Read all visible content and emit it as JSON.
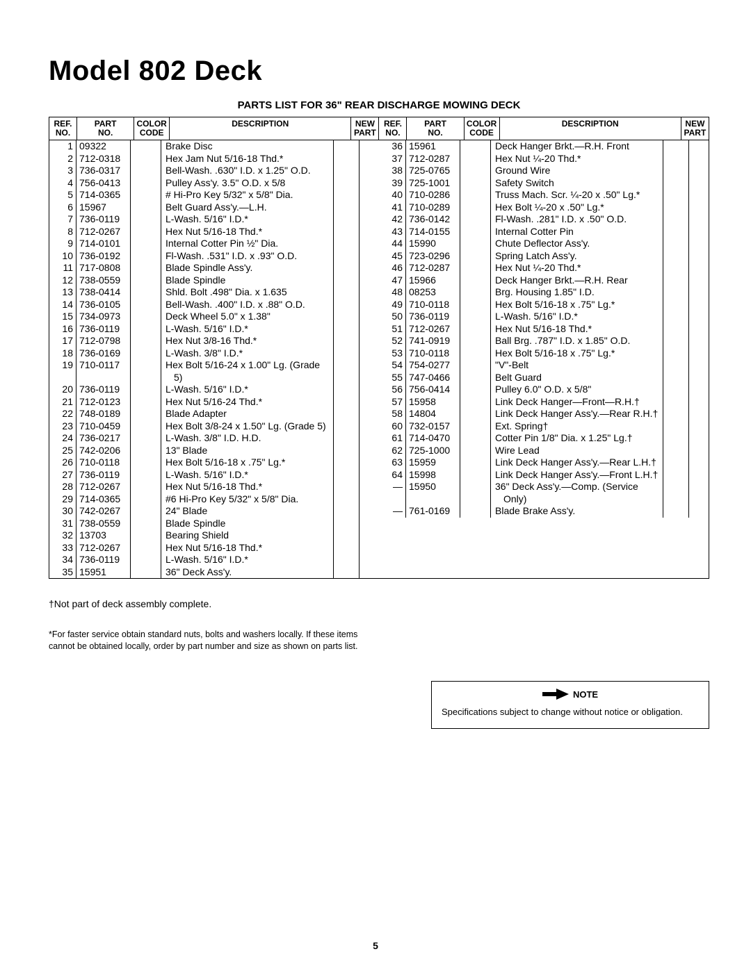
{
  "title": "Model 802 Deck",
  "subtitle": "PARTS LIST FOR 36\" REAR DISCHARGE MOWING DECK",
  "headers": {
    "ref": "REF.\nNO.",
    "part": "PART\nNO.",
    "color": "COLOR\nCODE",
    "desc": "DESCRIPTION",
    "new": "NEW\nPART"
  },
  "left": [
    {
      "ref": "1",
      "part": "09322",
      "desc": "Brake Disc"
    },
    {
      "ref": "2",
      "part": "712-0318",
      "desc": "Hex Jam Nut 5/16-18 Thd.*"
    },
    {
      "ref": "3",
      "part": "736-0317",
      "desc": "Bell-Wash. .630\" I.D. x 1.25\" O.D."
    },
    {
      "ref": "4",
      "part": "756-0413",
      "desc": "Pulley Ass'y. 3.5\" O.D. x 5/8"
    },
    {
      "ref": "5",
      "part": "714-0365",
      "desc": "# Hi-Pro Key 5/32\" x 5/8\" Dia."
    },
    {
      "ref": "6",
      "part": "15967",
      "desc": "Belt Guard Ass'y.—L.H."
    },
    {
      "ref": "7",
      "part": "736-0119",
      "desc": "L-Wash. 5/16\" I.D.*"
    },
    {
      "ref": "8",
      "part": "712-0267",
      "desc": "Hex Nut 5/16-18 Thd.*"
    },
    {
      "ref": "9",
      "part": "714-0101",
      "desc": "Internal Cotter Pin ½\" Dia."
    },
    {
      "ref": "10",
      "part": "736-0192",
      "desc": "Fl-Wash. .531\" I.D. x .93\" O.D."
    },
    {
      "ref": "11",
      "part": "717-0808",
      "desc": "Blade Spindle Ass'y."
    },
    {
      "ref": "12",
      "part": "738-0559",
      "desc": "Blade Spindle"
    },
    {
      "ref": "13",
      "part": "738-0414",
      "desc": "Shld. Bolt .498\" Dia. x 1.635"
    },
    {
      "ref": "14",
      "part": "736-0105",
      "desc": "Bell-Wash. .400\" I.D. x .88\" O.D."
    },
    {
      "ref": "15",
      "part": "734-0973",
      "desc": "Deck Wheel 5.0\" x 1.38\""
    },
    {
      "ref": "16",
      "part": "736-0119",
      "desc": "L-Wash. 5/16\" I.D.*"
    },
    {
      "ref": "17",
      "part": "712-0798",
      "desc": "Hex Nut 3/8-16 Thd.*"
    },
    {
      "ref": "18",
      "part": "736-0169",
      "desc": "L-Wash. 3/8\" I.D.*"
    },
    {
      "ref": "19",
      "part": "710-0117",
      "desc": "Hex Bolt 5/16-24 x 1.00\" Lg. (Grade 5)"
    },
    {
      "ref": "20",
      "part": "736-0119",
      "desc": "L-Wash. 5/16\" I.D.*"
    },
    {
      "ref": "21",
      "part": "712-0123",
      "desc": "Hex Nut 5/16-24 Thd.*"
    },
    {
      "ref": "22",
      "part": "748-0189",
      "desc": "Blade Adapter"
    },
    {
      "ref": "23",
      "part": "710-0459",
      "desc": "Hex Bolt 3/8-24 x 1.50\" Lg. (Grade 5)"
    },
    {
      "ref": "24",
      "part": "736-0217",
      "desc": "L-Wash. 3/8\" I.D. H.D."
    },
    {
      "ref": "25",
      "part": "742-0206",
      "desc": "13\" Blade"
    },
    {
      "ref": "26",
      "part": "710-0118",
      "desc": "Hex Bolt 5/16-18 x .75\" Lg.*"
    },
    {
      "ref": "27",
      "part": "736-0119",
      "desc": "L-Wash. 5/16\" I.D.*"
    },
    {
      "ref": "28",
      "part": "712-0267",
      "desc": "Hex Nut 5/16-18 Thd.*"
    },
    {
      "ref": "29",
      "part": "714-0365",
      "desc": "#6 Hi-Pro Key 5/32\" x 5/8\" Dia."
    },
    {
      "ref": "30",
      "part": "742-0267",
      "desc": "24\" Blade"
    },
    {
      "ref": "31",
      "part": "738-0559",
      "desc": "Blade Spindle"
    },
    {
      "ref": "32",
      "part": "13703",
      "desc": "Bearing Shield"
    },
    {
      "ref": "33",
      "part": "712-0267",
      "desc": "Hex Nut 5/16-18 Thd.*"
    },
    {
      "ref": "34",
      "part": "736-0119",
      "desc": "L-Wash. 5/16\" I.D.*"
    },
    {
      "ref": "35",
      "part": "15951",
      "desc": "36\" Deck Ass'y."
    }
  ],
  "right": [
    {
      "ref": "36",
      "part": "15961",
      "desc": "Deck Hanger Brkt.—R.H. Front"
    },
    {
      "ref": "37",
      "part": "712-0287",
      "desc": "Hex Nut ¼-20 Thd.*"
    },
    {
      "ref": "38",
      "part": "725-0765",
      "desc": "Ground Wire"
    },
    {
      "ref": "39",
      "part": "725-1001",
      "desc": "Safety Switch"
    },
    {
      "ref": "40",
      "part": "710-0286",
      "desc": "Truss Mach. Scr. ¼-20 x .50\" Lg.*"
    },
    {
      "ref": "41",
      "part": "710-0289",
      "desc": "Hex Bolt ¼-20 x .50\" Lg.*"
    },
    {
      "ref": "42",
      "part": "736-0142",
      "desc": "Fl-Wash. .281\" I.D. x .50\" O.D."
    },
    {
      "ref": "43",
      "part": "714-0155",
      "desc": "Internal Cotter Pin"
    },
    {
      "ref": "44",
      "part": "15990",
      "desc": "Chute Deflector Ass'y."
    },
    {
      "ref": "45",
      "part": "723-0296",
      "desc": "Spring Latch Ass'y."
    },
    {
      "ref": "46",
      "part": "712-0287",
      "desc": "Hex Nut ¼-20 Thd.*"
    },
    {
      "ref": "47",
      "part": "15966",
      "desc": "Deck Hanger Brkt.—R.H. Rear"
    },
    {
      "ref": "48",
      "part": "08253",
      "desc": "Brg. Housing 1.85\" I.D."
    },
    {
      "ref": "49",
      "part": "710-0118",
      "desc": "Hex Bolt 5/16-18 x .75\" Lg.*"
    },
    {
      "ref": "50",
      "part": "736-0119",
      "desc": "L-Wash. 5/16\" I.D.*"
    },
    {
      "ref": "51",
      "part": "712-0267",
      "desc": "Hex Nut 5/16-18 Thd.*"
    },
    {
      "ref": "52",
      "part": "741-0919",
      "desc": "Ball Brg. .787\" I.D. x 1.85\" O.D."
    },
    {
      "ref": "53",
      "part": "710-0118",
      "desc": "Hex Bolt 5/16-18 x .75\" Lg.*"
    },
    {
      "ref": "54",
      "part": "754-0277",
      "desc": "\"V\"-Belt"
    },
    {
      "ref": "55",
      "part": "747-0466",
      "desc": "Belt Guard"
    },
    {
      "ref": "56",
      "part": "756-0414",
      "desc": "Pulley 6.0\" O.D. x 5/8\""
    },
    {
      "ref": "57",
      "part": "15958",
      "desc": "Link Deck Hanger—Front—R.H.†"
    },
    {
      "ref": "58",
      "part": "14804",
      "desc": "Link Deck Hanger Ass'y.—Rear R.H.†"
    },
    {
      "ref": "60",
      "part": "732-0157",
      "desc": "Ext. Spring†"
    },
    {
      "ref": "61",
      "part": "714-0470",
      "desc": "Cotter Pin 1/8\" Dia. x 1.25\" Lg.†"
    },
    {
      "ref": "62",
      "part": "725-1000",
      "desc": "Wire Lead"
    },
    {
      "ref": "63",
      "part": "15959",
      "desc": "Link Deck Hanger Ass'y.—Rear L.H.†"
    },
    {
      "ref": "64",
      "part": "15998",
      "desc": "Link Deck Hanger Ass'y.—Front L.H.†"
    },
    {
      "ref": "—",
      "part": "15950",
      "desc": "36\" Deck Ass'y.—Comp. (Service Only)"
    },
    {
      "ref": "—",
      "part": "761-0169",
      "desc": "Blade Brake Ass'y."
    }
  ],
  "footnote_dagger": "†Not part of deck assembly complete.",
  "footnote_star": "*For faster service obtain standard nuts, bolts and washers locally. If these items cannot be obtained locally, order by part number and size as shown on parts list.",
  "note_label": "NOTE",
  "note_text": "Specifications subject to change without notice or obligation.",
  "page_number": "5"
}
